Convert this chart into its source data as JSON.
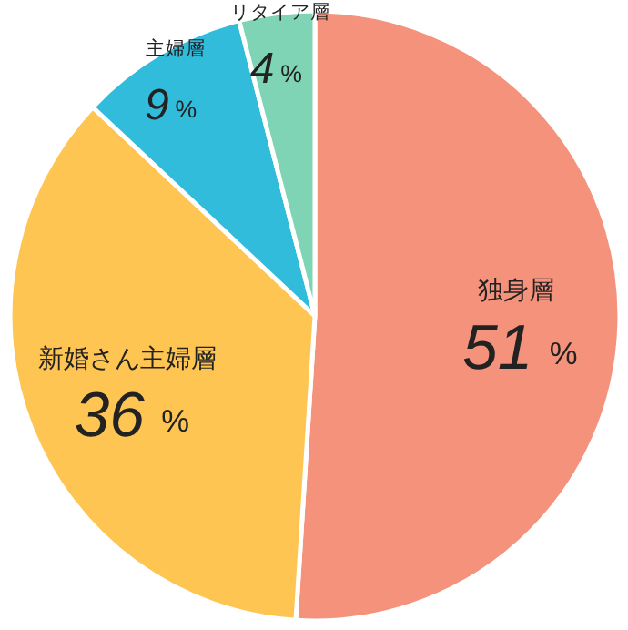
{
  "chart_data": {
    "type": "pie",
    "categories": [
      "独身層",
      "新婚さん主婦層",
      "主婦層",
      "リタイア層"
    ],
    "values": [
      51,
      36,
      9,
      4
    ],
    "colors": [
      "#f4927c",
      "#fec552",
      "#31bcdc",
      "#7fd4b5"
    ],
    "value_labels": [
      "51%",
      "36%",
      "9%",
      "4%"
    ],
    "legend": false
  }
}
